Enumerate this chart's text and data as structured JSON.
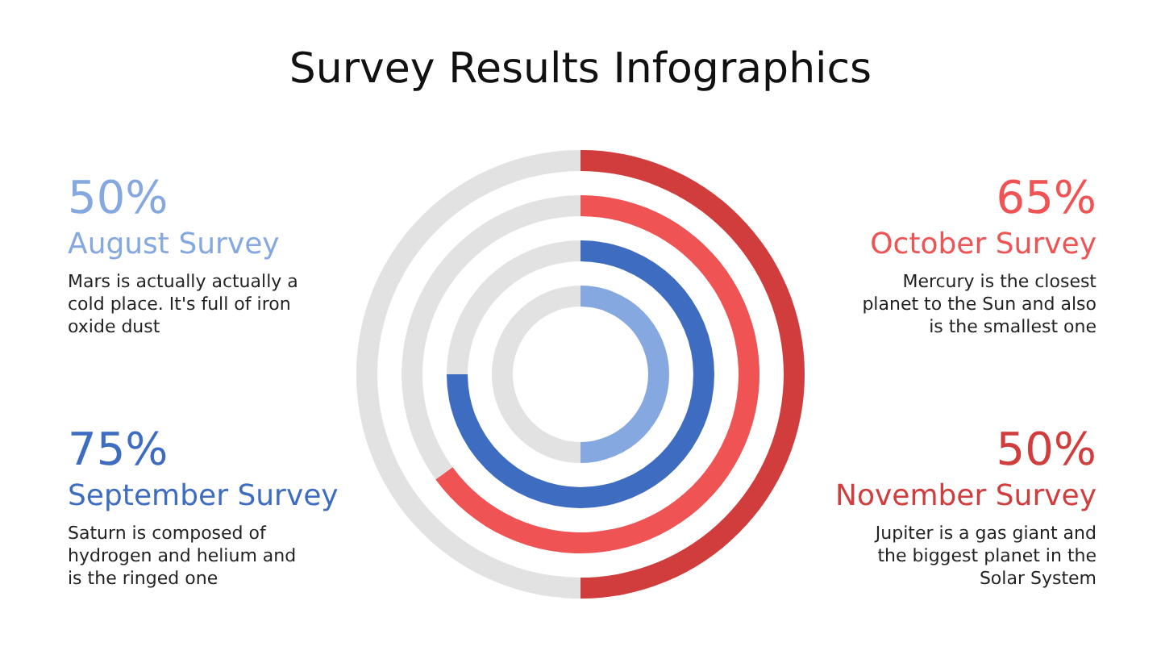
{
  "chart_data": {
    "type": "other",
    "title": "Survey Results Infographics",
    "categories": [
      "August Survey",
      "September Survey",
      "October Survey",
      "November Survey"
    ],
    "values": [
      50,
      75,
      65,
      50
    ],
    "value_labels": [
      "50%",
      "75%",
      "65%",
      "50%"
    ],
    "colors": [
      "#86a8e0",
      "#3d6cc0",
      "#ef5353",
      "#d13c3c"
    ],
    "annotations": [
      "Mars is actually actually a cold place. It's full of iron oxide dust",
      "Saturn is composed of hydrogen and helium and is the ringed one",
      "Mercury is the closest planet to the Sun and also is the smallest one",
      "Jupiter is a gas giant and the biggest planet in the Solar System"
    ]
  }
}
